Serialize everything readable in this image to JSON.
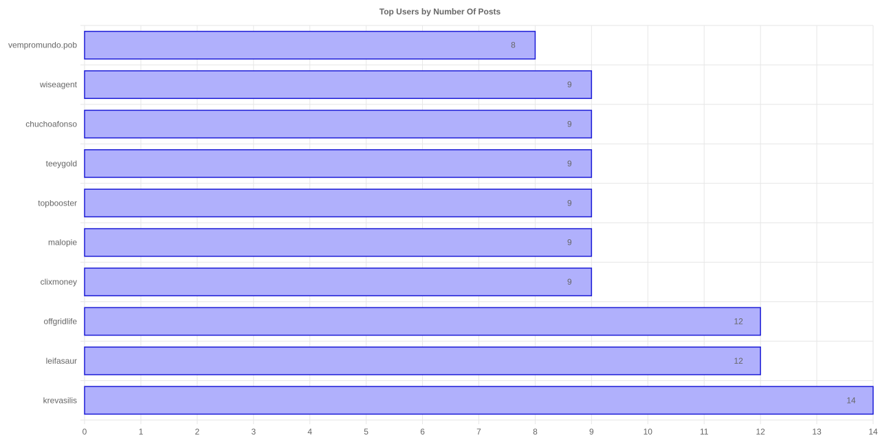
{
  "chart_data": {
    "type": "bar",
    "orientation": "horizontal",
    "title": "Top Users by Number Of Posts",
    "xlabel": "",
    "ylabel": "",
    "categories": [
      "vempromundo.pob",
      "wiseagent",
      "chuchoafonso",
      "teeygold",
      "topbooster",
      "malopie",
      "clixmoney",
      "offgridlife",
      "leifasaur",
      "krevasilis"
    ],
    "values": [
      8,
      9,
      9,
      9,
      9,
      9,
      9,
      12,
      12,
      14
    ],
    "xlim": [
      0,
      14
    ],
    "xticks": [
      0,
      1,
      2,
      3,
      4,
      5,
      6,
      7,
      8,
      9,
      10,
      11,
      12,
      13,
      14
    ],
    "grid": true,
    "data_labels": true,
    "colors": {
      "bar_fill": "#b0b0fc",
      "bar_stroke": "#1a1ad6",
      "grid": "#e6e6e6",
      "text": "#666666"
    }
  }
}
